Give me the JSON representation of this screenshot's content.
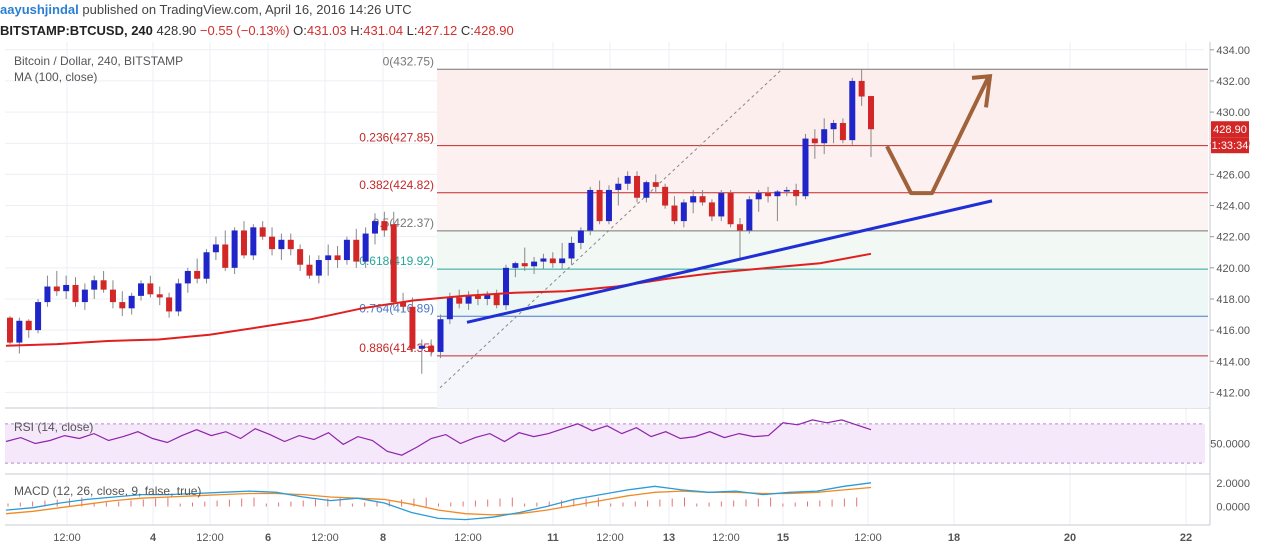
{
  "header": {
    "user": "aayushjindal",
    "published_text": "published on TradingView.com, April 16, 2016 14:26 UTC"
  },
  "quote": {
    "symbol": "BITSTAMP:BTCUSD, 240",
    "last": "428.90",
    "change": "−0.55 (−0.13%)",
    "o_label": "O:",
    "o_value": "431.03",
    "h_label": "H:",
    "h_value": "431.04",
    "l_label": "L:",
    "l_value": "427.12",
    "c_label": "C:",
    "c_value": "428.90"
  },
  "colors": {
    "up_candle": "#1f25c9",
    "down_candle": "#d32626",
    "ma_line": "#e02020",
    "trendline": "#1f2fd4",
    "fib_line": "#c62828",
    "fib_green": "#26a69a",
    "fib_blue": "#4a79c9",
    "arrow": "#a0623a",
    "rsi": "#8e24aa",
    "macd_line": "#2a9bd8",
    "signal_line": "#f08a24"
  },
  "chart_data": {
    "type": "candlestick",
    "title": "Bitcoin / Dollar, 240, BITSTAMP",
    "indicator_label": "MA (100, close)",
    "ylim": [
      411,
      434.5
    ],
    "y_ticks": [
      "434.00",
      "432.00",
      "430.00",
      "428.00",
      "426.00",
      "424.00",
      "422.00",
      "420.00",
      "418.00",
      "416.00",
      "414.00",
      "412.00"
    ],
    "x_tick_labels": [
      "12:00",
      "4",
      "12:00",
      "6",
      "12:00",
      "8",
      "12:00",
      "11",
      "12:00",
      "13",
      "12:00",
      "15",
      "12:00",
      "18",
      "20",
      "22"
    ],
    "last_price_label": "428.90",
    "countdown_label": "1:33:34",
    "candles": [
      [
        416.8,
        416.9,
        415.1,
        415.2
      ],
      [
        415.2,
        416.8,
        414.5,
        416.6
      ],
      [
        416.6,
        416.7,
        415.5,
        416.0
      ],
      [
        416.0,
        418.0,
        415.8,
        417.8
      ],
      [
        417.8,
        419.5,
        417.5,
        418.8
      ],
      [
        418.8,
        419.8,
        418.2,
        418.5
      ],
      [
        418.5,
        419.5,
        418.0,
        418.9
      ],
      [
        418.9,
        419.4,
        417.5,
        417.8
      ],
      [
        417.8,
        419.0,
        417.3,
        418.6
      ],
      [
        418.6,
        419.5,
        418.0,
        419.2
      ],
      [
        419.2,
        419.8,
        418.4,
        418.6
      ],
      [
        418.6,
        419.2,
        417.4,
        417.8
      ],
      [
        417.8,
        418.5,
        416.9,
        417.4
      ],
      [
        417.4,
        418.4,
        417.0,
        418.2
      ],
      [
        418.2,
        419.2,
        417.9,
        419.0
      ],
      [
        419.0,
        419.5,
        418.1,
        418.3
      ],
      [
        418.3,
        418.8,
        417.6,
        418.1
      ],
      [
        418.1,
        418.4,
        416.8,
        417.2
      ],
      [
        417.2,
        419.3,
        416.9,
        419.0
      ],
      [
        419.0,
        420.0,
        418.4,
        419.8
      ],
      [
        419.8,
        420.6,
        419.0,
        419.3
      ],
      [
        419.3,
        421.2,
        419.0,
        421.0
      ],
      [
        421.0,
        422.0,
        420.5,
        421.5
      ],
      [
        421.5,
        422.4,
        419.8,
        420.0
      ],
      [
        420.0,
        422.6,
        419.6,
        422.4
      ],
      [
        422.4,
        423.0,
        420.6,
        420.8
      ],
      [
        420.8,
        422.8,
        420.5,
        422.6
      ],
      [
        422.6,
        423.0,
        421.8,
        422.0
      ],
      [
        422.0,
        422.6,
        420.8,
        421.2
      ],
      [
        421.2,
        422.2,
        420.5,
        421.8
      ],
      [
        421.8,
        422.2,
        420.8,
        421.2
      ],
      [
        421.2,
        421.5,
        419.8,
        420.2
      ],
      [
        420.2,
        420.8,
        419.3,
        419.5
      ],
      [
        419.5,
        420.8,
        419.0,
        420.5
      ],
      [
        420.5,
        421.5,
        419.5,
        420.8
      ],
      [
        420.8,
        421.4,
        420.0,
        420.5
      ],
      [
        420.5,
        422.0,
        420.2,
        421.8
      ],
      [
        421.8,
        422.5,
        420.0,
        420.4
      ],
      [
        420.4,
        422.6,
        420.0,
        422.2
      ],
      [
        422.2,
        423.5,
        421.5,
        423.0
      ],
      [
        423.0,
        423.6,
        422.0,
        422.4
      ],
      [
        422.8,
        423.6,
        417.4,
        417.8
      ],
      [
        417.8,
        418.4,
        417.2,
        417.5
      ],
      [
        417.5,
        418.1,
        414.6,
        414.8
      ],
      [
        414.8,
        415.4,
        413.2,
        415.0
      ],
      [
        415.0,
        415.4,
        414.3,
        414.6
      ],
      [
        414.6,
        417.0,
        414.2,
        416.7
      ],
      [
        416.7,
        418.4,
        416.4,
        418.1
      ],
      [
        418.1,
        418.6,
        417.4,
        417.7
      ],
      [
        417.7,
        418.5,
        417.3,
        418.2
      ],
      [
        418.2,
        418.6,
        417.6,
        418.0
      ],
      [
        418.0,
        418.5,
        417.6,
        418.3
      ],
      [
        418.3,
        418.6,
        417.4,
        417.6
      ],
      [
        417.6,
        420.2,
        417.3,
        420.0
      ],
      [
        420.0,
        420.4,
        419.4,
        420.3
      ],
      [
        420.3,
        421.3,
        419.8,
        420.1
      ],
      [
        420.1,
        420.7,
        419.6,
        420.4
      ],
      [
        420.4,
        420.9,
        419.9,
        420.6
      ],
      [
        420.6,
        421.0,
        420.0,
        420.3
      ],
      [
        420.3,
        421.6,
        419.9,
        420.6
      ],
      [
        420.6,
        422.0,
        420.2,
        421.6
      ],
      [
        421.6,
        422.6,
        421.2,
        422.4
      ],
      [
        422.4,
        425.2,
        422.1,
        425.0
      ],
      [
        425.0,
        425.6,
        422.8,
        423.0
      ],
      [
        423.0,
        425.3,
        422.8,
        425.0
      ],
      [
        425.0,
        425.8,
        424.0,
        425.4
      ],
      [
        425.4,
        426.2,
        425.0,
        425.9
      ],
      [
        425.9,
        426.2,
        424.2,
        424.5
      ],
      [
        424.5,
        425.6,
        424.2,
        425.5
      ],
      [
        425.5,
        426.0,
        424.8,
        425.2
      ],
      [
        425.2,
        425.4,
        423.8,
        424.0
      ],
      [
        424.0,
        424.6,
        422.8,
        423.0
      ],
      [
        423.0,
        424.4,
        422.6,
        424.2
      ],
      [
        424.2,
        425.0,
        423.5,
        424.6
      ],
      [
        424.6,
        425.0,
        424.0,
        424.2
      ],
      [
        424.2,
        424.4,
        423.0,
        423.3
      ],
      [
        423.3,
        425.0,
        423.0,
        424.8
      ],
      [
        424.8,
        425.0,
        422.6,
        422.8
      ],
      [
        422.8,
        423.2,
        420.6,
        422.4
      ],
      [
        422.4,
        424.6,
        422.2,
        424.4
      ],
      [
        424.4,
        425.0,
        423.6,
        424.8
      ],
      [
        424.8,
        425.2,
        424.2,
        424.6
      ],
      [
        424.6,
        425.0,
        423.0,
        424.9
      ],
      [
        424.9,
        425.2,
        424.6,
        425.0
      ],
      [
        425.0,
        425.4,
        424.0,
        424.6
      ],
      [
        424.6,
        428.6,
        424.4,
        428.3
      ],
      [
        428.3,
        428.9,
        427.0,
        428.0
      ],
      [
        428.0,
        429.6,
        427.3,
        428.9
      ],
      [
        428.9,
        429.5,
        428.0,
        429.3
      ],
      [
        429.3,
        429.6,
        428.0,
        428.2
      ],
      [
        428.2,
        432.2,
        427.9,
        432.0
      ],
      [
        432.0,
        432.75,
        430.4,
        431.0
      ],
      [
        431.03,
        431.04,
        427.12,
        428.9
      ]
    ],
    "ma100": [
      415.0,
      415.1,
      415.3,
      415.4,
      415.7,
      416.2,
      416.7,
      417.4,
      417.9,
      418.2,
      418.4,
      418.5,
      418.8,
      419.3,
      419.7,
      420.0,
      420.3,
      420.9
    ],
    "fibonacci": [
      {
        "level": "0",
        "price": 432.75,
        "label": "0(432.75)"
      },
      {
        "level": "0.236",
        "price": 427.85,
        "label": "0.236(427.85)"
      },
      {
        "level": "0.382",
        "price": 424.82,
        "label": "0.382(424.82)"
      },
      {
        "level": "0.5",
        "price": 422.37,
        "label": "0.5(422.37)"
      },
      {
        "level": "0.618",
        "price": 419.92,
        "label": "0.618(419.92)"
      },
      {
        "level": "0.764",
        "price": 416.89,
        "label": "0.764(416.89)"
      },
      {
        "level": "0.886",
        "price": 414.35,
        "label": "0.886(414.35)"
      }
    ],
    "trendline": [
      [
        416.5
      ],
      [
        424.3
      ]
    ],
    "rsi": {
      "label": "RSI (14, close)",
      "level_label": "50.0000",
      "values": [
        52,
        56,
        50,
        53,
        58,
        55,
        60,
        53,
        57,
        62,
        55,
        51,
        58,
        64,
        58,
        62,
        55,
        65,
        59,
        52,
        58,
        54,
        61,
        49,
        57,
        53,
        42,
        38,
        46,
        55,
        59,
        50,
        56,
        60,
        52,
        61,
        57,
        60,
        65,
        70,
        63,
        68,
        60,
        66,
        57,
        62,
        55,
        57,
        62,
        56,
        60,
        57,
        58,
        71,
        69,
        74,
        71,
        74,
        69,
        64
      ]
    },
    "macd": {
      "label": "MACD (12, 26, close, 9, false, true)",
      "y_ticks": [
        "2.0000",
        "0.0000"
      ],
      "macd": [
        -0.3,
        -0.1,
        0.3,
        0.6,
        0.8,
        1.0,
        1.0,
        1.1,
        1.2,
        1.3,
        1.2,
        0.8,
        0.5,
        0.7,
        0.3,
        -0.5,
        -1.0,
        -1.1,
        -0.9,
        -0.5,
        0.0,
        0.6,
        1.0,
        1.4,
        1.7,
        1.4,
        1.2,
        1.3,
        1.0,
        1.2,
        1.3,
        1.7,
        2.0
      ],
      "signal": [
        -0.6,
        -0.4,
        -0.1,
        0.2,
        0.5,
        0.7,
        0.8,
        0.9,
        1.0,
        1.1,
        1.1,
        1.0,
        0.8,
        0.7,
        0.6,
        0.2,
        -0.3,
        -0.6,
        -0.7,
        -0.6,
        -0.3,
        0.1,
        0.5,
        0.9,
        1.2,
        1.3,
        1.2,
        1.2,
        1.1,
        1.1,
        1.2,
        1.4,
        1.6
      ]
    }
  }
}
